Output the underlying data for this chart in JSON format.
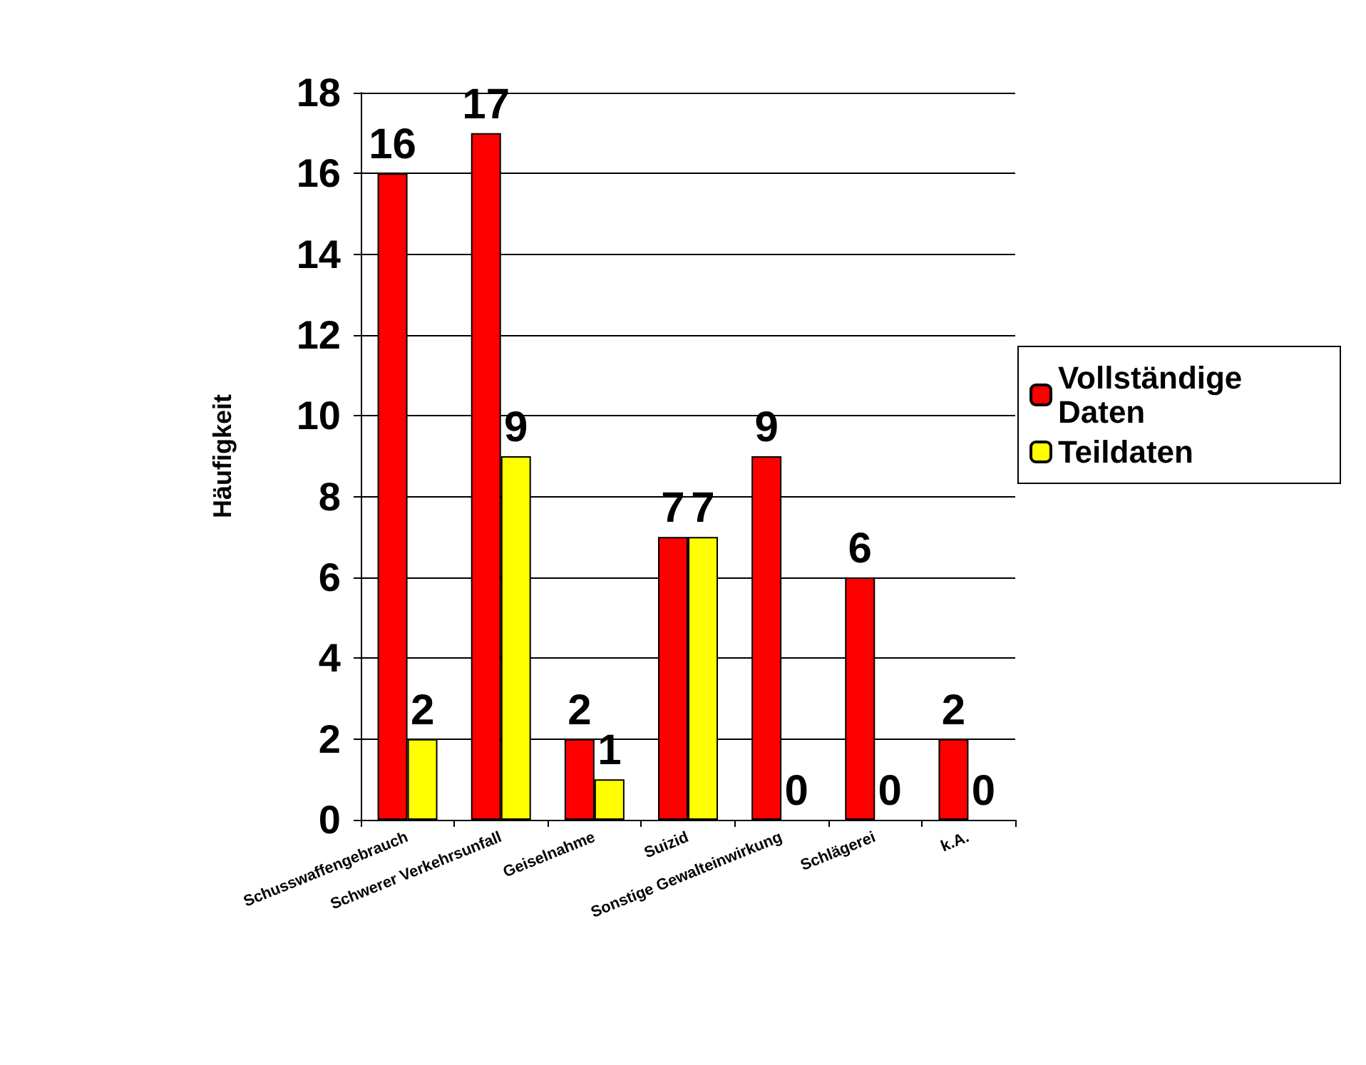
{
  "chart_data": {
    "type": "bar",
    "ylabel": "Häufigkeit",
    "categories": [
      "Schusswaffengebrauch",
      "Schwerer Verkehrsunfall",
      "Geiselnahme",
      "Suizid",
      "Sonstige Gewalteinwirkung",
      "Schlägerei",
      "k.A."
    ],
    "series": [
      {
        "name": "Vollständige Daten",
        "color": "#ff0000",
        "values": [
          16,
          17,
          2,
          7,
          9,
          6,
          2
        ]
      },
      {
        "name": "Teildaten",
        "color": "#ffff00",
        "values": [
          2,
          9,
          1,
          7,
          0,
          0,
          0
        ]
      }
    ],
    "ylim": [
      0,
      18
    ],
    "yticks": [
      0,
      2,
      4,
      6,
      8,
      10,
      12,
      14,
      16,
      18
    ],
    "grid": "y",
    "legend": "right",
    "data_labels": true
  }
}
